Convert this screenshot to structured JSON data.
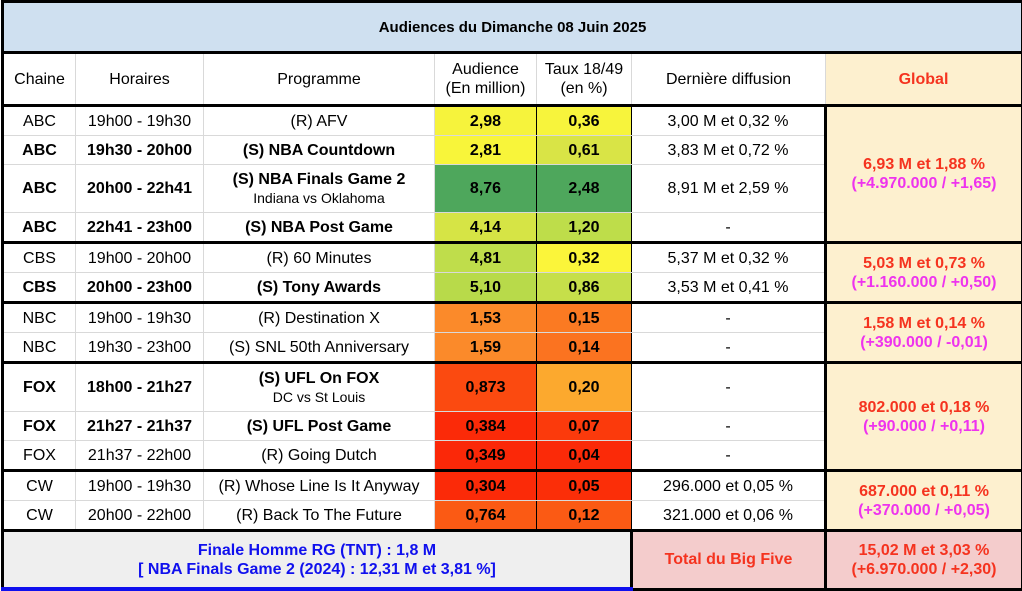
{
  "title": "Audiences du Dimanche 08 Juin 2025",
  "headers": {
    "chaine": "Chaine",
    "horaires": "Horaires",
    "programme": "Programme",
    "audience_1": "Audience",
    "audience_2": "(En million)",
    "taux_1": "Taux 18/49",
    "taux_2": "(en %)",
    "derniere": "Dernière diffusion",
    "global": "Global"
  },
  "groups": [
    {
      "global_main": "6,93 M et 1,88 %",
      "global_delta": "(+4.970.000 / +1,65)",
      "rows": [
        {
          "chaine": "ABC",
          "horaires": "19h00 - 19h30",
          "programme": "(R) AFV",
          "sub": "",
          "audience": "2,98",
          "taux": "0,36",
          "derniere": "3,00 M et 0,32 %",
          "bold": false,
          "aud_color": "#f6f33c",
          "taux_color": "#f7f43c"
        },
        {
          "chaine": "ABC",
          "horaires": "19h30 - 20h00",
          "programme": "(S) NBA Countdown",
          "sub": "",
          "audience": "2,81",
          "taux": "0,61",
          "derniere": "3,83 M et 0,72 %",
          "bold": true,
          "aud_color": "#f8f53a",
          "taux_color": "#d9e446"
        },
        {
          "chaine": "ABC",
          "horaires": "20h00 - 22h41",
          "programme": "(S) NBA Finals Game 2",
          "sub": "Indiana vs Oklahoma",
          "audience": "8,76",
          "taux": "2,48",
          "derniere": "8,91 M et 2,59 %",
          "bold": true,
          "aud_color": "#4ea75c",
          "taux_color": "#4ea75c"
        },
        {
          "chaine": "ABC",
          "horaires": "22h41 - 23h00",
          "programme": "(S) NBA Post Game",
          "sub": "",
          "audience": "4,14",
          "taux": "1,20",
          "derniere": "-",
          "bold": true,
          "aud_color": "#d6e445",
          "taux_color": "#bedd4a"
        }
      ]
    },
    {
      "global_main": "5,03 M et 0,73 %",
      "global_delta": "(+1.160.000 / +0,50)",
      "rows": [
        {
          "chaine": "CBS",
          "horaires": "19h00 - 20h00",
          "programme": "(R) 60 Minutes",
          "sub": "",
          "audience": "4,81",
          "taux": "0,32",
          "derniere": "5,37 M et 0,32 %",
          "bold": false,
          "aud_color": "#bfdd4b",
          "taux_color": "#fbf53a"
        },
        {
          "chaine": "CBS",
          "horaires": "20h00 - 23h00",
          "programme": "(S) Tony Awards",
          "sub": "",
          "audience": "5,10",
          "taux": "0,86",
          "derniere": "3,53 M et 0,41 %",
          "bold": true,
          "aud_color": "#b8da4a",
          "taux_color": "#c6df4a"
        }
      ]
    },
    {
      "global_main": "1,58 M et 0,14 %",
      "global_delta": "(+390.000 / -0,01)",
      "rows": [
        {
          "chaine": "NBC",
          "horaires": "19h00 - 19h30",
          "programme": "(R) Destination X",
          "sub": "",
          "audience": "1,53",
          "taux": "0,15",
          "derniere": "-",
          "bold": false,
          "aud_color": "#fb8a2a",
          "taux_color": "#fb7a22"
        },
        {
          "chaine": "NBC",
          "horaires": "19h30 - 23h00",
          "programme": "(S) SNL 50th Anniversary",
          "sub": "",
          "audience": "1,59",
          "taux": "0,14",
          "derniere": "-",
          "bold": false,
          "aud_color": "#fb8a2a",
          "taux_color": "#fb7320"
        }
      ]
    },
    {
      "global_main": "802.000 et 0,18 %",
      "global_delta": "(+90.000 / +0,11)",
      "rows": [
        {
          "chaine": "FOX",
          "horaires": "18h00 - 21h27",
          "programme": "(S) UFL On FOX",
          "sub": "DC vs St Louis",
          "audience": "0,873",
          "taux": "0,20",
          "derniere": "-",
          "bold": true,
          "aud_color": "#fb4a10",
          "taux_color": "#fca92e"
        },
        {
          "chaine": "FOX",
          "horaires": "21h27 - 21h37",
          "programme": "(S) UFL Post Game",
          "sub": "",
          "audience": "0,384",
          "taux": "0,07",
          "derniere": "-",
          "bold": true,
          "aud_color": "#fb2a08",
          "taux_color": "#fb3a0c"
        },
        {
          "chaine": "FOX",
          "horaires": "21h37 - 22h00",
          "programme": "(R) Going Dutch",
          "sub": "",
          "audience": "0,349",
          "taux": "0,04",
          "derniere": "-",
          "bold": false,
          "aud_color": "#fb2808",
          "taux_color": "#fb2a08"
        }
      ]
    },
    {
      "global_main": "687.000 et 0,11 %",
      "global_delta": "(+370.000 / +0,05)",
      "rows": [
        {
          "chaine": "CW",
          "horaires": "19h00 - 19h30",
          "programme": "(R) Whose Line Is It Anyway",
          "sub": "",
          "audience": "0,304",
          "taux": "0,05",
          "derniere": "296.000 et 0,05 %",
          "bold": false,
          "aud_color": "#fb2a08",
          "taux_color": "#fb2e08"
        },
        {
          "chaine": "CW",
          "horaires": "20h00 - 22h00",
          "programme": "(R) Back To The Future",
          "sub": "",
          "audience": "0,764",
          "taux": "0,12",
          "derniere": "321.000 et 0,06 %",
          "bold": false,
          "aud_color": "#fb5a14",
          "taux_color": "#fb5a14"
        }
      ]
    }
  ],
  "footer": {
    "note_1": "Finale Homme RG (TNT) : 1,8 M",
    "note_2": "[ NBA Finals Game 2 (2024) : 12,31 M et 3,81 %]",
    "total_label": "Total du Big Five",
    "total_main": "15,02 M et 3,03 %",
    "total_delta": "(+6.970.000 / +2,30)"
  }
}
